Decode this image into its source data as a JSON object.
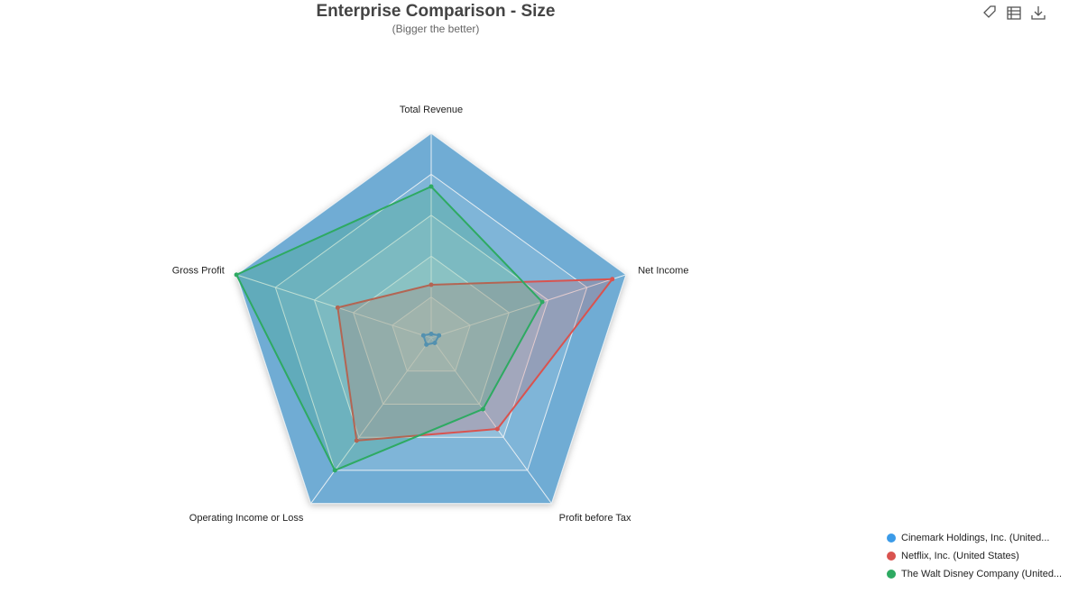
{
  "chart_data": {
    "type": "radar",
    "title": "Enterprise Comparison - Size",
    "subtitle": "(Bigger the better)",
    "categories": [
      "Total Revenue",
      "Net Income",
      "Profit before Tax",
      "Operating Income or Loss",
      "Gross Profit"
    ],
    "rlim": [
      0,
      100
    ],
    "rings": 5,
    "series": [
      {
        "name": "Cinemark Holdings, Inc. (United...",
        "color": "#3b9be8",
        "values": [
          2,
          4,
          3,
          4,
          4
        ]
      },
      {
        "name": "Netflix, Inc. (United States)",
        "color": "#d9534f",
        "values": [
          26,
          93,
          55,
          62,
          48
        ]
      },
      {
        "name": "The Walt Disney Company (United...",
        "color": "#2eaa62",
        "values": [
          74,
          57,
          43,
          80,
          100
        ]
      }
    ],
    "legend": "bottom-right"
  }
}
